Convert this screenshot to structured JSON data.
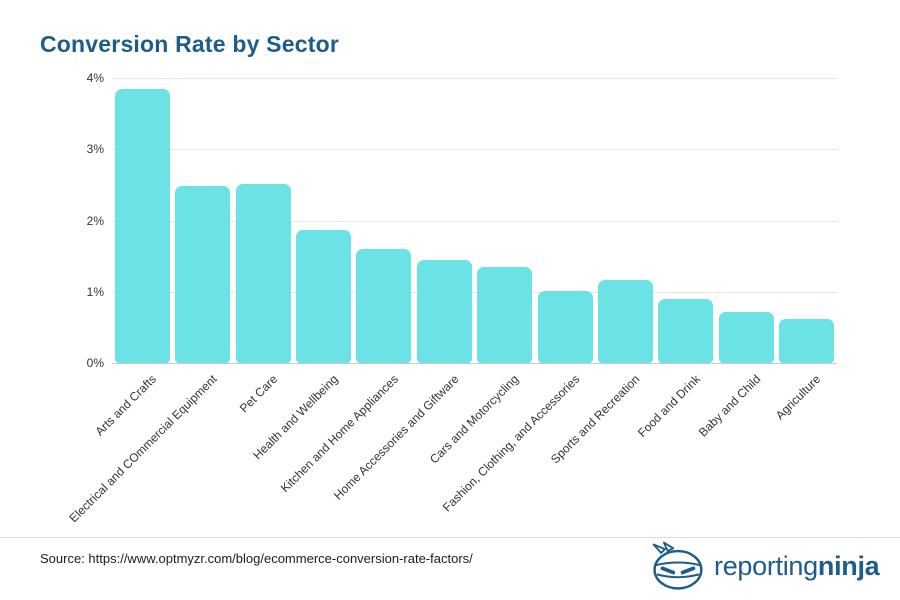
{
  "title": "Conversion Rate by Sector",
  "colors": {
    "accent": "#1e5c8b",
    "bar": "#6be2e5",
    "grid": "#e6e6e6",
    "baseline": "#c9c9c9",
    "tick_text": "#333333"
  },
  "chart_data": {
    "type": "bar",
    "title": "Conversion Rate by Sector",
    "categories": [
      "Arts and Crafts",
      "Electrical and COmmercial Equipment",
      "Pet Care",
      "Health and Wellbeing",
      "Kitchen and Home Appliances",
      "Home Accessories and Giftware",
      "Cars and Motorcycling",
      "Fashion, Clothing, and Accessories",
      "Sports and Recreation",
      "Food and Drink",
      "Baby and Child",
      "Agriculture"
    ],
    "values": [
      3.84,
      2.49,
      2.51,
      1.87,
      1.6,
      1.45,
      1.35,
      1.01,
      1.17,
      0.9,
      0.71,
      0.62
    ],
    "unit": "%",
    "xlabel": "",
    "ylabel": "",
    "ylim": [
      0,
      4
    ],
    "ytick_values": [
      0,
      1,
      2,
      3,
      4
    ],
    "ytick_labels": [
      "0%",
      "1%",
      "2%",
      "3%",
      "4%"
    ],
    "grid": true,
    "legend": false,
    "xtick_rotation_deg": 45
  },
  "footer": {
    "source_label": "Source: https://www.optmyzr.com/blog/ecommerce-conversion-rate-factors/",
    "logo_text_regular": "reporting",
    "logo_text_bold": "ninja"
  }
}
